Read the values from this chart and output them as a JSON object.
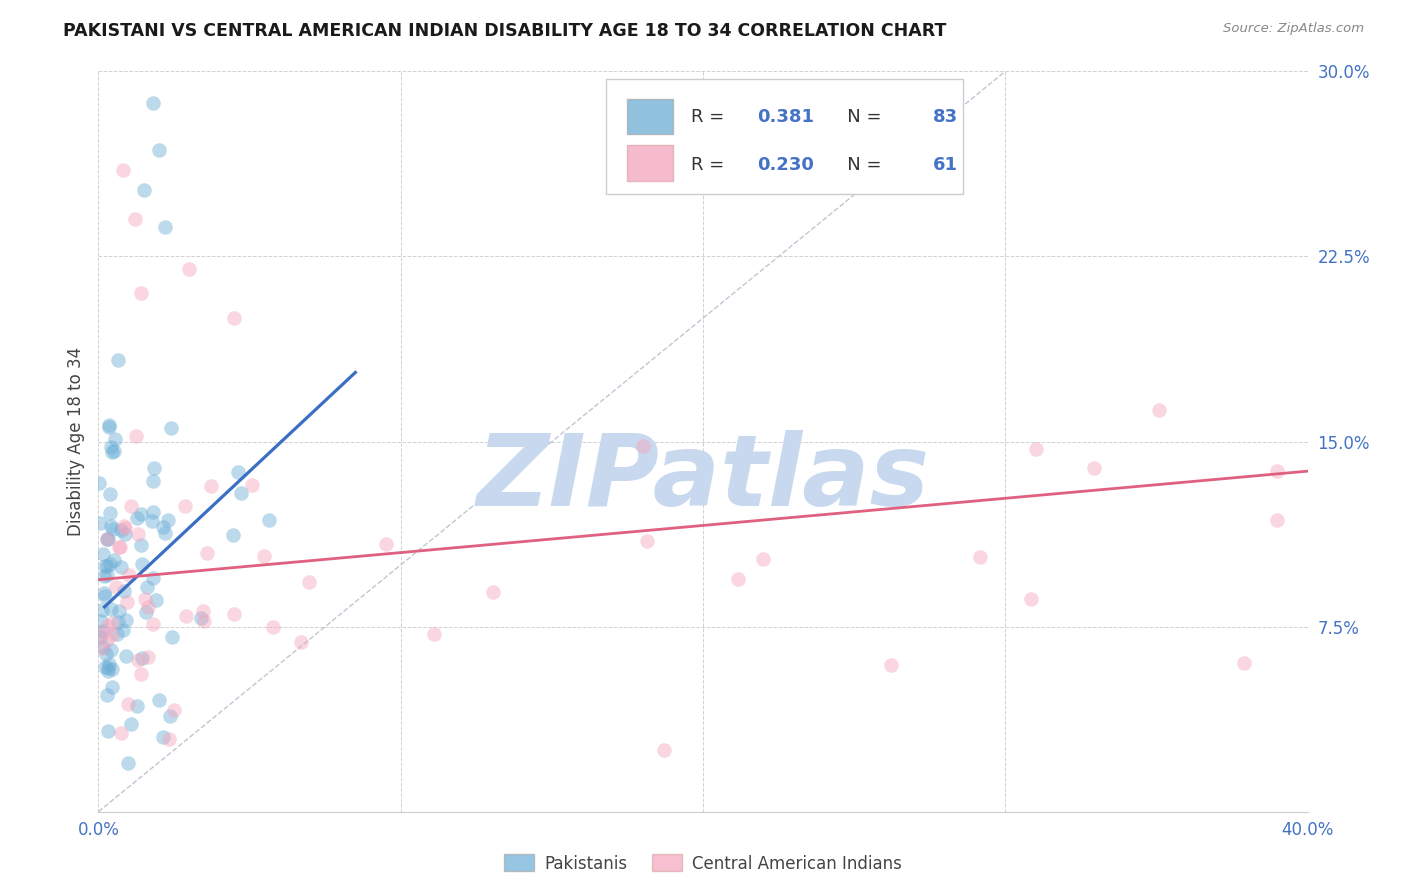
{
  "title": "PAKISTANI VS CENTRAL AMERICAN INDIAN DISABILITY AGE 18 TO 34 CORRELATION CHART",
  "source": "Source: ZipAtlas.com",
  "ylabel": "Disability Age 18 to 34",
  "xlim": [
    0.0,
    0.4
  ],
  "ylim": [
    0.0,
    0.3
  ],
  "blue_label": "Pakistanis",
  "pink_label": "Central American Indians",
  "blue_R": "0.381",
  "blue_N": "83",
  "pink_R": "0.230",
  "pink_N": "61",
  "blue_color": "#6baed6",
  "pink_color": "#f4a4bc",
  "blue_line_color": "#3a6fc4",
  "pink_line_color": "#e06080",
  "watermark_color": "#c8d8ee",
  "ytick_color": "#4472c4",
  "legend_number_color": "#4472c4",
  "legend_text_color": "#333333"
}
